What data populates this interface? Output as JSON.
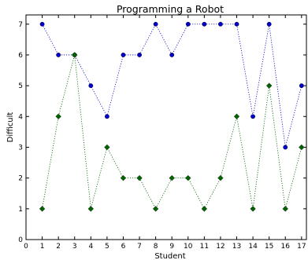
{
  "chart_data": {
    "type": "line",
    "title": "Programming a Robot",
    "xlabel": "Student",
    "ylabel": "Difficult",
    "xlim": [
      0,
      17.3
    ],
    "ylim": [
      0,
      7.3
    ],
    "xticks": [
      "0",
      "1",
      "2",
      "3",
      "4",
      "5",
      "6",
      "7",
      "8",
      "9",
      "10",
      "11",
      "12",
      "13",
      "14",
      "15",
      "16",
      "17"
    ],
    "yticks": [
      "0",
      "1",
      "2",
      "3",
      "4",
      "5",
      "6",
      "7"
    ],
    "grid": false,
    "legend": "none",
    "x": [
      1,
      2,
      3,
      4,
      5,
      6,
      7,
      8,
      9,
      10,
      11,
      12,
      13,
      14,
      15,
      16,
      17
    ],
    "series": [
      {
        "color": "#0000cc",
        "marker": "circle",
        "line_style": "dotted",
        "values": [
          7,
          6,
          6,
          5,
          4,
          6,
          6,
          7,
          6,
          7,
          7,
          7,
          7,
          4,
          7,
          3,
          5
        ]
      },
      {
        "color": "#006400",
        "marker": "diamond",
        "line_style": "dotted",
        "values": [
          1,
          4,
          6,
          1,
          3,
          2,
          2,
          1,
          2,
          2,
          1,
          2,
          4,
          1,
          5,
          1,
          3
        ]
      }
    ]
  }
}
